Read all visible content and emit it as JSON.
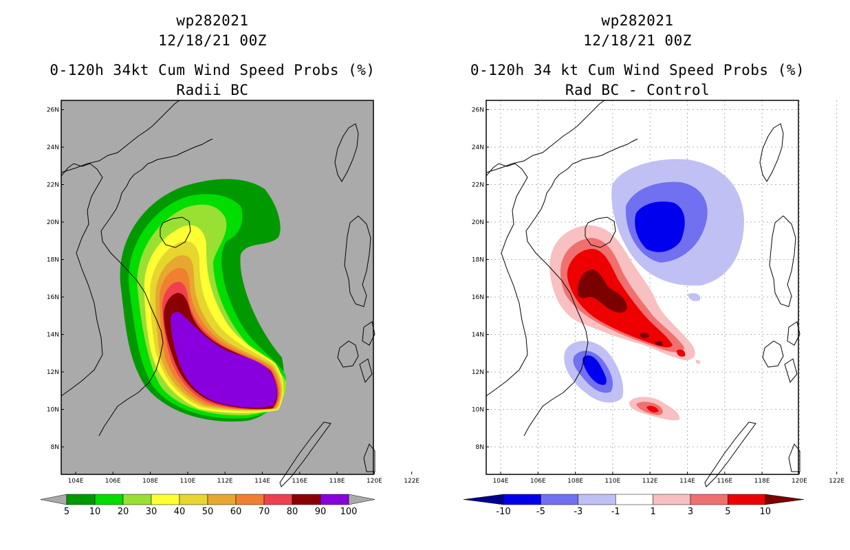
{
  "left_panel": {
    "storm_id": "wp282021",
    "datetime": "12/18/21 00Z",
    "title": "0-120h 34kt Cum Wind Speed Probs (%)",
    "subtitle": "Radii BC",
    "colorbar": {
      "labels": [
        "5",
        "10",
        "20",
        "30",
        "40",
        "50",
        "60",
        "70",
        "80",
        "90",
        "100"
      ],
      "colors": [
        "#009900",
        "#00dd00",
        "#99e033",
        "#ffff33",
        "#e6d62e",
        "#e6a830",
        "#f08030",
        "#f04050",
        "#8b0000",
        "#8800dd"
      ]
    },
    "colors": {
      "background": "#aaaaaa"
    }
  },
  "right_panel": {
    "storm_id": "wp282021",
    "datetime": "12/18/21 00Z",
    "title": "0-120h 34 kt Cum Wind Speed Probs (%)",
    "subtitle": "Rad BC - Control",
    "colorbar": {
      "labels": [
        "-10",
        "-5",
        "-3",
        "-1",
        "1",
        "3",
        "5",
        "10"
      ],
      "colors": [
        "#00008b",
        "#0000ee",
        "#7070f0",
        "#c0c0f4",
        "#ffffff",
        "#f8c0c0",
        "#f07070",
        "#ee0000",
        "#7b0000"
      ]
    }
  },
  "axes": {
    "lon_labels": [
      "104E",
      "106E",
      "108E",
      "110E",
      "112E",
      "114E",
      "116E",
      "118E",
      "120E",
      "122E"
    ],
    "lat_labels": [
      "8N",
      "10N",
      "12N",
      "14N",
      "16N",
      "18N",
      "20N",
      "22N",
      "24N",
      "26N"
    ]
  }
}
